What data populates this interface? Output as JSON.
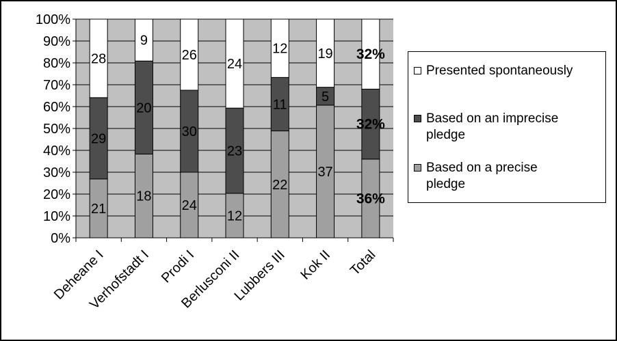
{
  "chart_data": {
    "type": "bar",
    "stacked": "percent",
    "categories": [
      "Deheane I",
      "Verhofstadt I",
      "Prodi I",
      "Berlusconi II",
      "Lubbers III",
      "Kok II",
      "Total"
    ],
    "series": [
      {
        "name": "Based on a precise pledge",
        "color": "#a0a0a0",
        "values": [
          21,
          18,
          24,
          12,
          22,
          37,
          36
        ],
        "labels": [
          "21",
          "18",
          "24",
          "12",
          "22",
          "37",
          "36%"
        ]
      },
      {
        "name": "Based on an imprecise pledge",
        "color": "#4d4d4d",
        "values": [
          29,
          20,
          30,
          23,
          11,
          5,
          32
        ],
        "labels": [
          "29",
          "20",
          "30",
          "23",
          "11",
          "5",
          "32%"
        ]
      },
      {
        "name": "Presented spontaneously",
        "color": "#ffffff",
        "values": [
          28,
          9,
          26,
          24,
          12,
          19,
          32
        ],
        "labels": [
          "28",
          "9",
          "26",
          "24",
          "12",
          "19",
          "32%"
        ]
      }
    ],
    "yticks": [
      "0%",
      "10%",
      "20%",
      "30%",
      "40%",
      "50%",
      "60%",
      "70%",
      "80%",
      "90%",
      "100%"
    ],
    "ylim": [
      0,
      100
    ],
    "grid": true,
    "plot_background": "#c0c0c0",
    "legend_position": "right",
    "legend_order": [
      "Presented spontaneously",
      "Based on an imprecise pledge",
      "Based on a precise pledge"
    ],
    "legend_lines": [
      [
        "Presented spontaneously"
      ],
      [
        "Based on an imprecise",
        "pledge"
      ],
      [
        "Based on a precise",
        "pledge"
      ]
    ],
    "bold_labels_category": "Total"
  }
}
